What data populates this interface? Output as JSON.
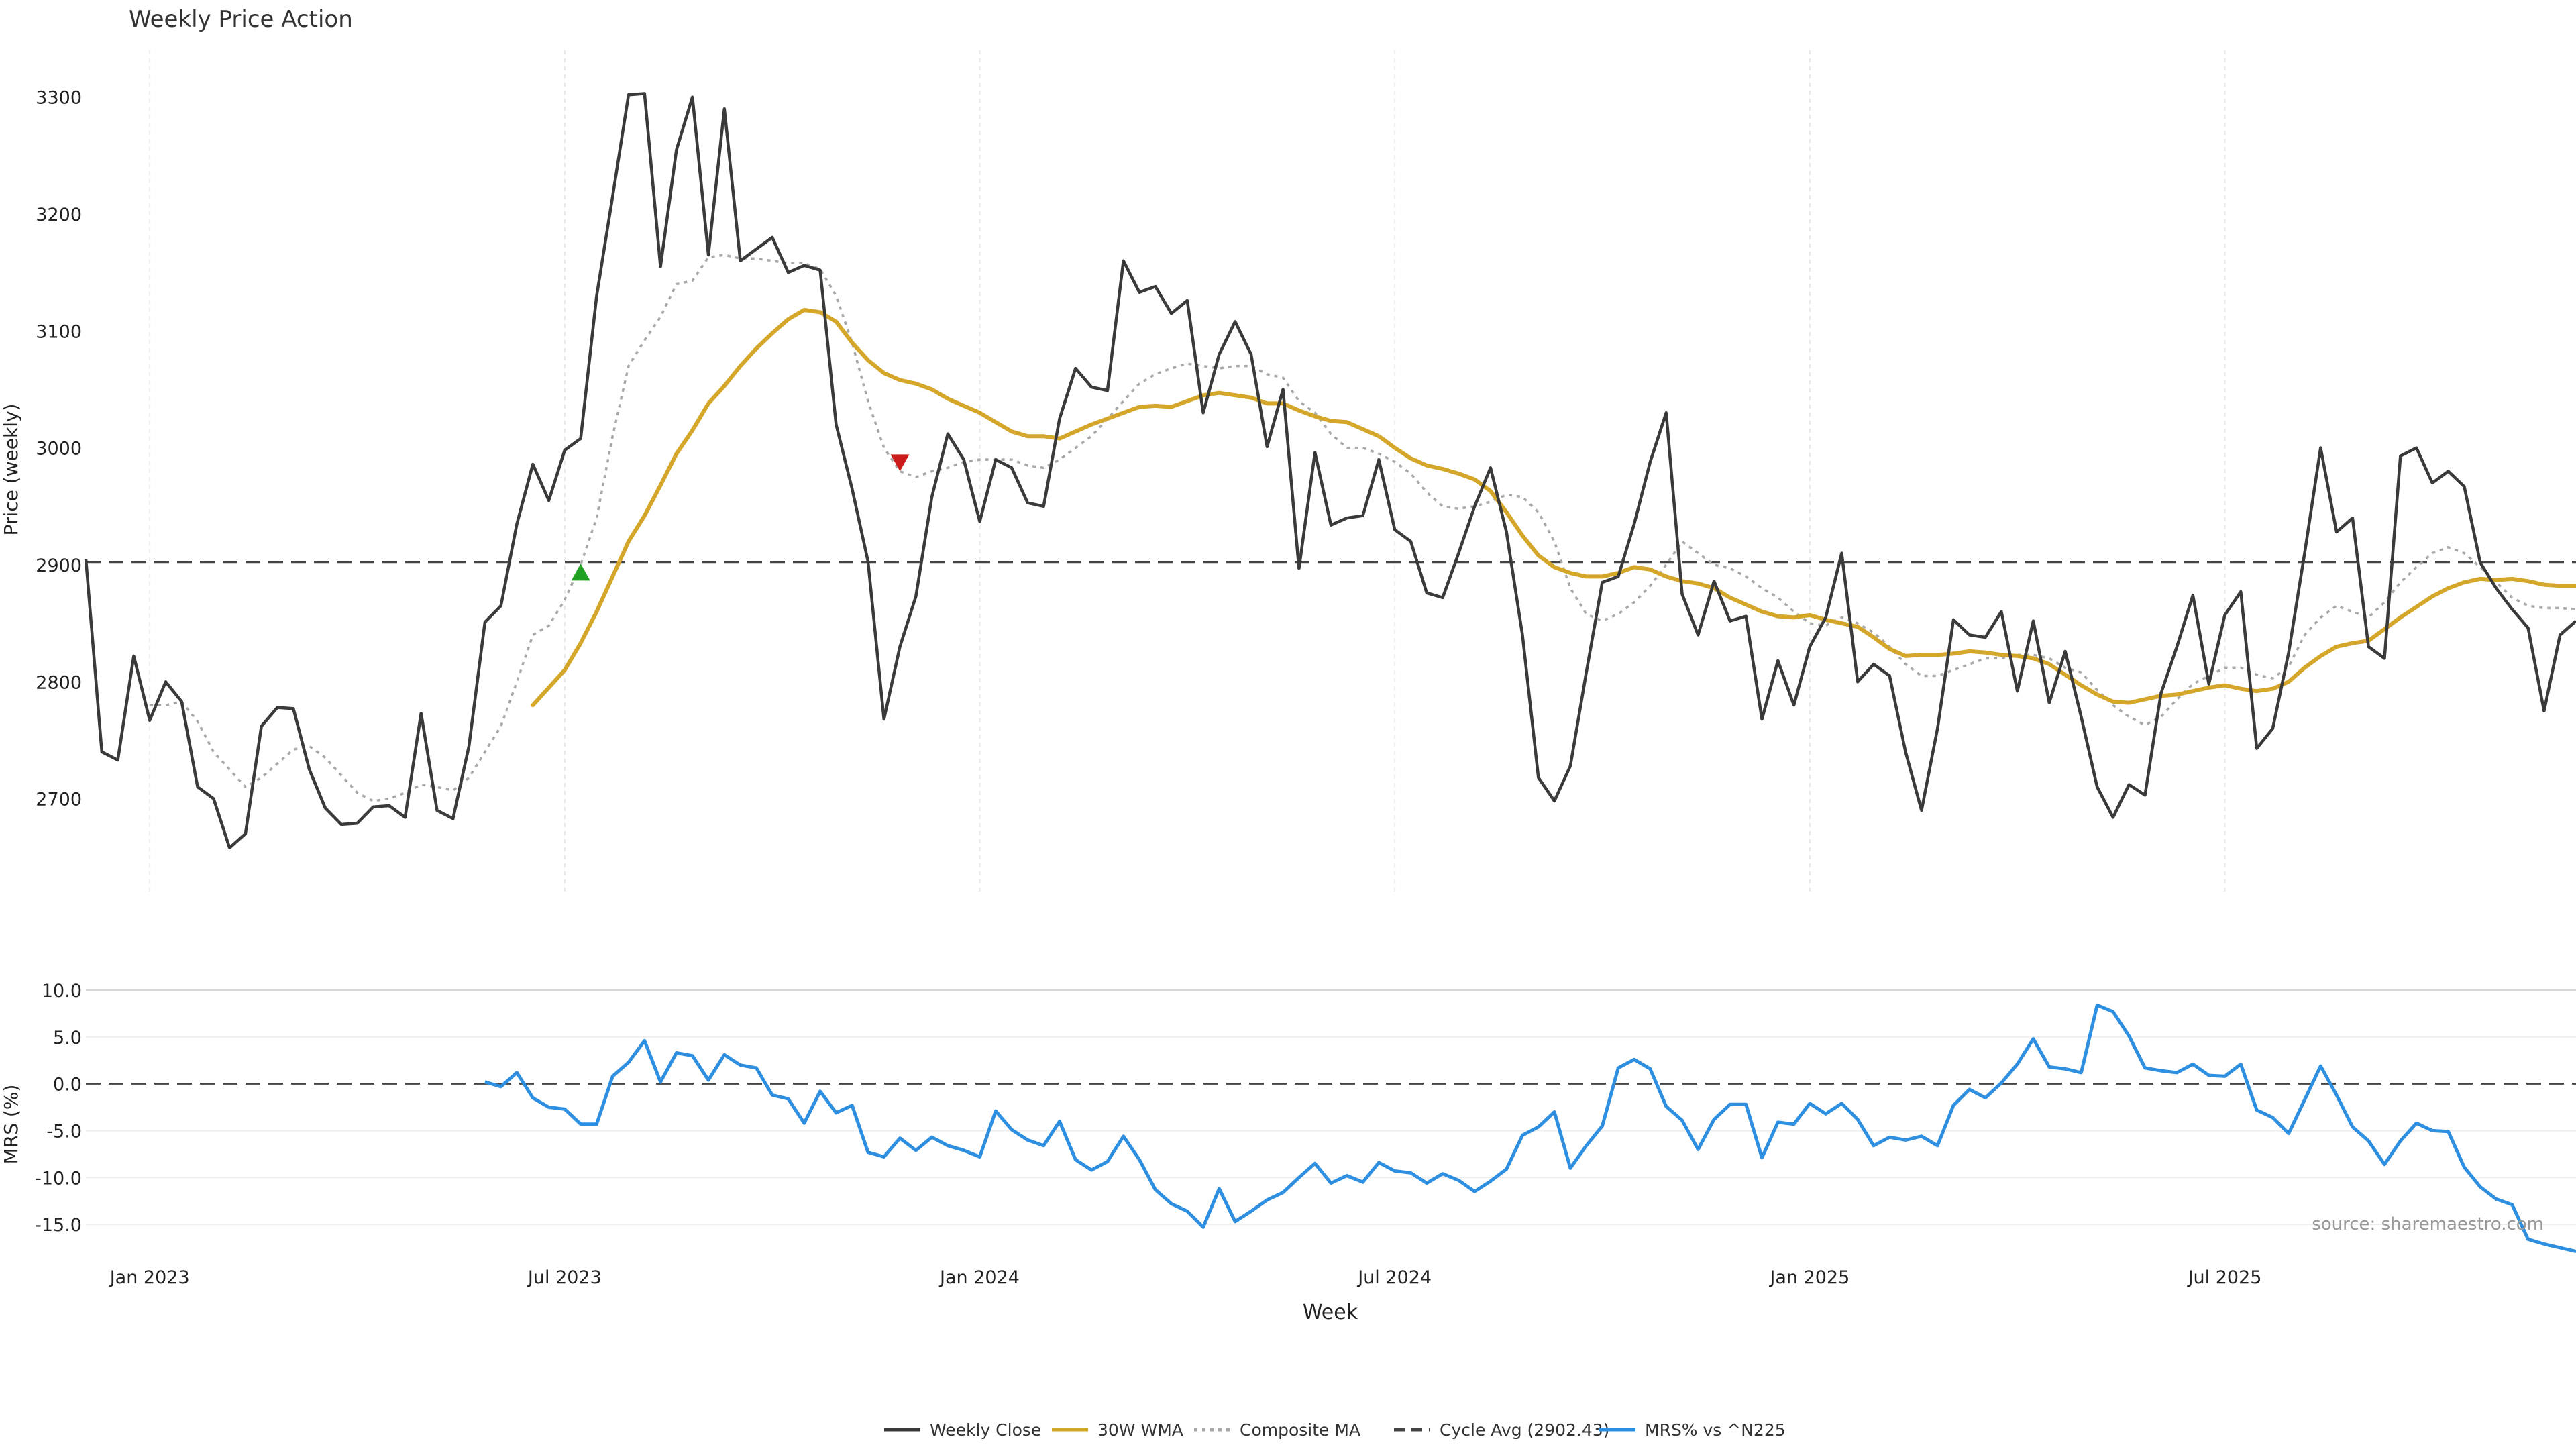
{
  "chart_data": {
    "type": "line",
    "title": "Weekly Price Action",
    "xlabel": "Week",
    "source_note": "source: sharemaestro.com",
    "date_ticks": [
      {
        "label": "Jan 2023",
        "week": 4
      },
      {
        "label": "Jul 2023",
        "week": 30
      },
      {
        "label": "Jan 2024",
        "week": 56
      },
      {
        "label": "Jul 2024",
        "week": 82
      },
      {
        "label": "Jan 2025",
        "week": 108
      },
      {
        "label": "Jul 2025",
        "week": 134
      }
    ],
    "price_panel": {
      "ylabel": "Price (weekly)",
      "ylim": [
        2620,
        3340
      ],
      "yticks": [
        2700,
        2800,
        2900,
        3000,
        3100,
        3200,
        3300
      ],
      "cycle_avg": 2902.43,
      "signals": [
        {
          "type": "buy",
          "week": 31,
          "value": 2893
        },
        {
          "type": "sell",
          "week": 51,
          "value": 2988
        }
      ],
      "weekly_close": [
        2905,
        2740,
        2733,
        2822,
        2767,
        2800,
        2783,
        2710,
        2700,
        2658,
        2670,
        2762,
        2778,
        2777,
        2725,
        2692,
        2678,
        2679,
        2693,
        2694,
        2684,
        2773,
        2690,
        2683,
        2745,
        2851,
        2865,
        2935,
        2986,
        2955,
        2998,
        3008,
        3130,
        3215,
        3302,
        3303,
        3155,
        3255,
        3300,
        3165,
        3290,
        3160,
        3170,
        3180,
        3150,
        3156,
        3152,
        3020,
        2965,
        2903,
        2768,
        2830,
        2873,
        2958,
        3012,
        2990,
        2937,
        2990,
        2983,
        2953,
        2950,
        3025,
        3068,
        3052,
        3049,
        3160,
        3133,
        3138,
        3115,
        3126,
        3030,
        3080,
        3108,
        3080,
        3001,
        3050,
        2897,
        2996,
        2934,
        2940,
        2942,
        2990,
        2930,
        2920,
        2876,
        2872,
        2910,
        2950,
        2983,
        2928,
        2840,
        2718,
        2698,
        2728,
        2808,
        2885,
        2890,
        2935,
        2988,
        3030,
        2875,
        2840,
        2886,
        2852,
        2856,
        2768,
        2818,
        2780,
        2830,
        2855,
        2910,
        2800,
        2815,
        2805,
        2740,
        2690,
        2760,
        2853,
        2840,
        2838,
        2860,
        2792,
        2852,
        2782,
        2826,
        2770,
        2710,
        2684,
        2712,
        2703,
        2790,
        2830,
        2874,
        2798,
        2857,
        2877,
        2743,
        2760,
        2825,
        2910,
        3000,
        2928,
        2940,
        2830,
        2820,
        2993,
        3000,
        2970,
        2980,
        2967,
        2902,
        2880,
        2862,
        2846,
        2775,
        2840,
        2852
      ],
      "wma_30": [
        null,
        null,
        null,
        null,
        null,
        null,
        null,
        null,
        null,
        null,
        null,
        null,
        null,
        null,
        null,
        null,
        null,
        null,
        null,
        null,
        null,
        null,
        null,
        null,
        null,
        null,
        null,
        null,
        2780,
        2795,
        2810,
        2833,
        2860,
        2890,
        2920,
        2942,
        2968,
        2995,
        3015,
        3038,
        3053,
        3070,
        3085,
        3098,
        3110,
        3118,
        3116,
        3108,
        3090,
        3075,
        3064,
        3058,
        3055,
        3050,
        3042,
        3036,
        3030,
        3022,
        3014,
        3010,
        3010,
        3008,
        3014,
        3020,
        3025,
        3030,
        3035,
        3036,
        3035,
        3040,
        3045,
        3047,
        3045,
        3043,
        3038,
        3038,
        3032,
        3027,
        3023,
        3022,
        3016,
        3010,
        3000,
        2991,
        2985,
        2982,
        2978,
        2973,
        2963,
        2945,
        2925,
        2908,
        2898,
        2893,
        2890,
        2890,
        2893,
        2898,
        2896,
        2890,
        2886,
        2884,
        2880,
        2872,
        2866,
        2860,
        2856,
        2855,
        2857,
        2853,
        2850,
        2847,
        2838,
        2828,
        2822,
        2823,
        2823,
        2824,
        2826,
        2825,
        2823,
        2822,
        2820,
        2815,
        2806,
        2797,
        2789,
        2783,
        2782,
        2785,
        2788,
        2789,
        2792,
        2795,
        2797,
        2794,
        2792,
        2794,
        2800,
        2812,
        2822,
        2830,
        2833,
        2835,
        2845,
        2855,
        2864,
        2873,
        2880,
        2885,
        2888,
        2887,
        2888,
        2886,
        2883,
        2882,
        2882
      ],
      "composite_ma": [
        null,
        null,
        null,
        null,
        2780,
        2780,
        2783,
        2766,
        2740,
        2725,
        2710,
        2718,
        2730,
        2742,
        2745,
        2735,
        2720,
        2705,
        2698,
        2700,
        2705,
        2712,
        2710,
        2707,
        2718,
        2740,
        2762,
        2800,
        2840,
        2848,
        2870,
        2900,
        2940,
        3010,
        3070,
        3092,
        3112,
        3140,
        3143,
        3163,
        3165,
        3162,
        3162,
        3160,
        3158,
        3158,
        3153,
        3130,
        3090,
        3040,
        3000,
        2980,
        2975,
        2980,
        2983,
        2988,
        2990,
        2990,
        2990,
        2985,
        2983,
        2990,
        3000,
        3010,
        3025,
        3040,
        3055,
        3063,
        3068,
        3072,
        3070,
        3068,
        3070,
        3070,
        3063,
        3060,
        3040,
        3030,
        3012,
        3000,
        3000,
        2995,
        2988,
        2978,
        2962,
        2950,
        2948,
        2950,
        2954,
        2960,
        2958,
        2945,
        2920,
        2880,
        2858,
        2852,
        2858,
        2868,
        2882,
        2900,
        2920,
        2910,
        2900,
        2897,
        2890,
        2880,
        2872,
        2860,
        2850,
        2848,
        2855,
        2850,
        2842,
        2830,
        2815,
        2805,
        2805,
        2810,
        2815,
        2820,
        2820,
        2823,
        2823,
        2820,
        2812,
        2808,
        2793,
        2780,
        2770,
        2763,
        2770,
        2785,
        2798,
        2805,
        2812,
        2812,
        2806,
        2803,
        2813,
        2840,
        2855,
        2865,
        2860,
        2855,
        2868,
        2885,
        2898,
        2910,
        2915,
        2910,
        2898,
        2885,
        2872,
        2865,
        2863,
        2863,
        2862
      ]
    },
    "mrs_panel": {
      "ylabel": "MRS (%)",
      "ylim": [
        -17.5,
        11
      ],
      "yticks": [
        10.0,
        5.0,
        0.0,
        -5.0,
        -10.0,
        -15.0
      ],
      "ytick_labels": [
        "10.0",
        "5.0",
        "0.0",
        "-5.0",
        "-10.0",
        "-15.0"
      ],
      "start_week": 25,
      "mrs": [
        0.2,
        -0.3,
        1.2,
        -1.5,
        -2.5,
        -2.7,
        -4.3,
        -4.3,
        0.8,
        2.3,
        4.6,
        0.2,
        3.3,
        3.0,
        0.4,
        3.1,
        2.0,
        1.7,
        -1.2,
        -1.6,
        -4.2,
        -0.8,
        -3.1,
        -2.3,
        -7.3,
        -7.8,
        -5.8,
        -7.1,
        -5.7,
        -6.6,
        -7.1,
        -7.8,
        -2.9,
        -4.9,
        -6.0,
        -6.6,
        -4.0,
        -8.1,
        -9.2,
        -8.3,
        -5.6,
        -8.1,
        -11.3,
        -12.8,
        -13.6,
        -15.3,
        -11.2,
        -14.7,
        -13.6,
        -12.4,
        -11.6,
        -10.0,
        -8.5,
        -10.6,
        -9.8,
        -10.5,
        -8.4,
        -9.3,
        -9.5,
        -10.6,
        -9.6,
        -10.3,
        -11.5,
        -10.4,
        -9.1,
        -5.5,
        -4.6,
        -3.0,
        -9.0,
        -6.6,
        -4.5,
        1.7,
        2.6,
        1.6,
        -2.4,
        -3.9,
        -7.0,
        -3.8,
        -2.2,
        -2.2,
        -7.9,
        -4.1,
        -4.3,
        -2.1,
        -3.2,
        -2.1,
        -3.8,
        -6.6,
        -5.7,
        -6.0,
        -5.6,
        -6.6,
        -2.3,
        -0.6,
        -1.5,
        0.1,
        2.1,
        4.8,
        1.8,
        1.6,
        1.2,
        8.4,
        7.7,
        5.1,
        1.7,
        1.4,
        1.2,
        2.1,
        0.9,
        0.8,
        2.1,
        -2.8,
        -3.6,
        -5.3,
        -1.7,
        1.9,
        -1.2,
        -4.6,
        -6.1,
        -8.6,
        -6.1,
        -4.2,
        -5.0,
        -5.1,
        -8.9,
        -11.0,
        -12.3,
        -12.9,
        -16.6,
        -17.1,
        -17.5,
        -17.9
      ]
    },
    "legend": [
      {
        "label": "Weekly Close",
        "color": "#3a3a3a",
        "style": "solid"
      },
      {
        "label": "30W WMA",
        "color": "#d4a62a",
        "style": "solid"
      },
      {
        "label": "Composite MA",
        "color": "#a8a8a8",
        "style": "dotted"
      },
      {
        "label": "Cycle Avg (2902.43)",
        "color": "#444444",
        "style": "dashed"
      },
      {
        "label": "MRS% vs ^N225",
        "color": "#2e8fe0",
        "style": "solid"
      }
    ],
    "colors": {
      "buy_marker": "#1fa022",
      "sell_marker": "#cc1b1b",
      "grid": "#e9e9e9",
      "axis_text": "#222222",
      "source_text": "#999999"
    }
  }
}
